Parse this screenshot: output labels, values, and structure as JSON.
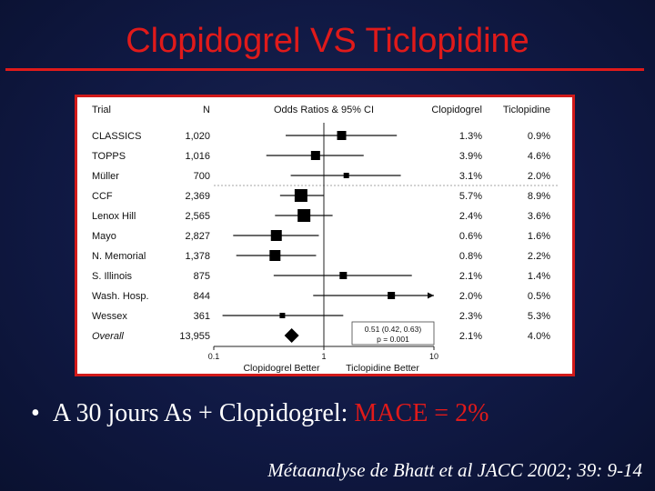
{
  "slide": {
    "title": "Clopidogrel VS Ticlopidine",
    "bullet_dot": "•",
    "bullet_text": "A 30 jours  As + Clopidogrel: ",
    "bullet_highlight": "MACE = 2%",
    "citation": "Métaanalyse de Bhatt et al JACC 2002; 39: 9-14",
    "colors": {
      "background": "#101944",
      "accent": "#e01a1a",
      "text": "#ffffff"
    }
  },
  "chart_data": {
    "type": "forest",
    "columns": {
      "trial": "Trial",
      "n": "N",
      "plot": "Odds Ratios & 95% CI",
      "clopidogrel": "Clopidogrel",
      "ticlopidine": "Ticlopidine"
    },
    "x_scale": "log",
    "xlim": [
      0.1,
      10
    ],
    "x_ticks": [
      {
        "value": 0.1,
        "label": "0.1"
      },
      {
        "value": 1,
        "label": "1"
      },
      {
        "value": 10,
        "label": "10"
      }
    ],
    "x_left_label": "Clopidogrel Better",
    "x_right_label": "Ticlopidine Better",
    "rows": [
      {
        "trial": "CLASSICS",
        "n": "1,020",
        "clop": "1.3%",
        "ticl": "0.9%",
        "or": 1.45,
        "lo": 0.45,
        "hi": 4.6,
        "weight": 3
      },
      {
        "trial": "TOPPS",
        "n": "1,016",
        "clop": "3.9%",
        "ticl": "4.6%",
        "or": 0.84,
        "lo": 0.3,
        "hi": 2.3,
        "weight": 3
      },
      {
        "trial": "Müller",
        "n": "700",
        "clop": "3.1%",
        "ticl": "2.0%",
        "or": 1.6,
        "lo": 0.5,
        "hi": 5.0,
        "weight": 1
      },
      {
        "trial": "CCF",
        "n": "2,369",
        "clop": "5.7%",
        "ticl": "8.9%",
        "or": 0.62,
        "lo": 0.4,
        "hi": 1.0,
        "weight": 5
      },
      {
        "trial": "Lenox Hill",
        "n": "2,565",
        "clop": "2.4%",
        "ticl": "3.6%",
        "or": 0.66,
        "lo": 0.36,
        "hi": 1.2,
        "weight": 5
      },
      {
        "trial": "Mayo",
        "n": "2,827",
        "clop": "0.6%",
        "ticl": "1.6%",
        "or": 0.37,
        "lo": 0.15,
        "hi": 0.9,
        "weight": 4
      },
      {
        "trial": "N. Memorial",
        "n": "1,378",
        "clop": "0.8%",
        "ticl": "2.2%",
        "or": 0.36,
        "lo": 0.16,
        "hi": 0.85,
        "weight": 4
      },
      {
        "trial": "S. Illinois",
        "n": "875",
        "clop": "2.1%",
        "ticl": "1.4%",
        "or": 1.5,
        "lo": 0.35,
        "hi": 6.3,
        "weight": 2
      },
      {
        "trial": "Wash. Hosp.",
        "n": "844",
        "clop": "2.0%",
        "ticl": "0.5%",
        "or": 4.1,
        "lo": 0.8,
        "hi": 10,
        "weight": 2,
        "arrow_right": true
      },
      {
        "trial": "Wessex",
        "n": "361",
        "clop": "2.3%",
        "ticl": "5.3%",
        "or": 0.42,
        "lo": 0.12,
        "hi": 1.5,
        "weight": 1
      },
      {
        "trial": "Overall",
        "n": "13,955",
        "clop": "2.1%",
        "ticl": "4.0%",
        "or": 0.51,
        "lo": 0.42,
        "hi": 0.63,
        "weight": 0,
        "overall": true
      }
    ],
    "annotation_line1": "0.51 (0.42, 0.63)",
    "annotation_line2": "p = 0.001"
  }
}
